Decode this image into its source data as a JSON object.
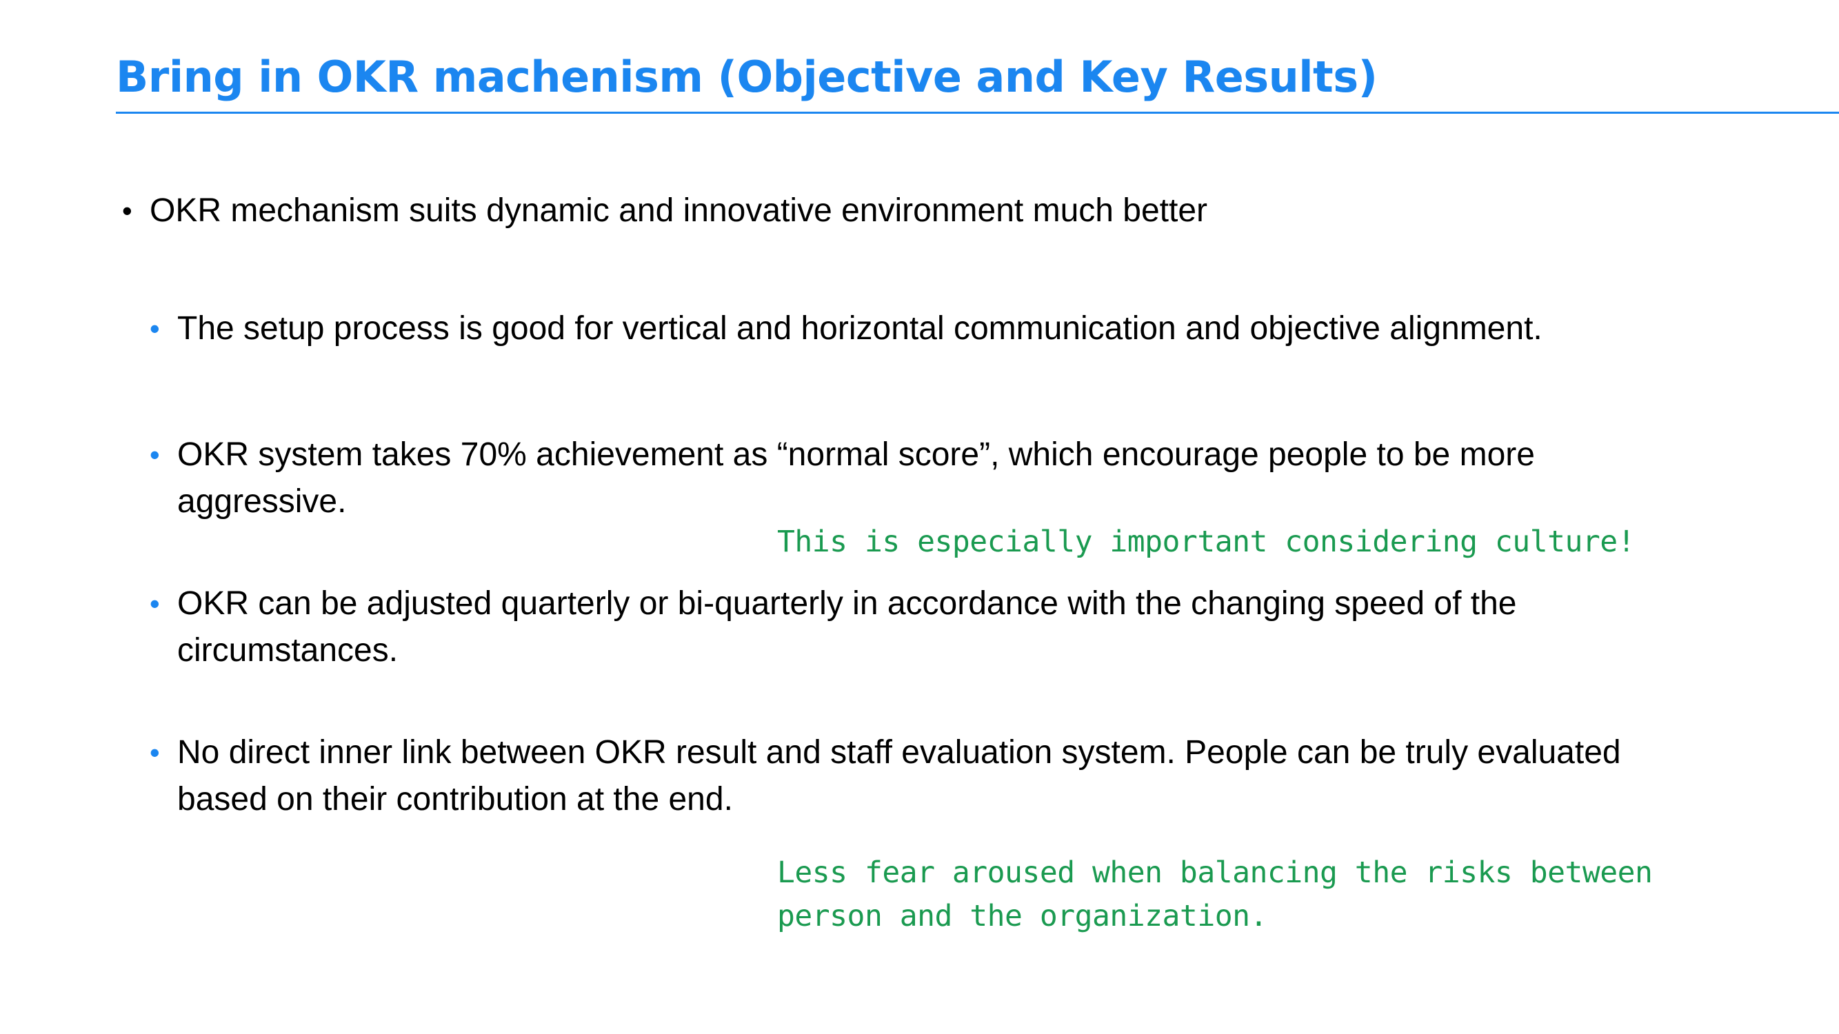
{
  "slide": {
    "title": "Bring in OKR machenism (Objective and Key Results)",
    "bullets": [
      {
        "level": 1,
        "text": "OKR mechanism suits dynamic and innovative environment much better"
      },
      {
        "level": 2,
        "text": "The setup process is good for vertical and horizontal communication and objective alignment."
      },
      {
        "level": 2,
        "text": "OKR system takes 70% achievement as “normal score”, which encourage people to be more aggressive."
      },
      {
        "level": 2,
        "text": "OKR can be adjusted quarterly or bi-quarterly in accordance with the changing speed of the circumstances."
      },
      {
        "level": 2,
        "text": "No direct inner link between OKR result and staff evaluation system. People can be truly evaluated based on their contribution at the end."
      }
    ],
    "notes": [
      {
        "lines": [
          "This is especially important considering culture!"
        ]
      },
      {
        "lines": [
          "Less fear aroused when balancing the risks between",
          "person and the organization."
        ]
      }
    ],
    "bullet_glyph": "•",
    "colors": {
      "title": "#1b86f0",
      "sub_bullet": "#1b86f0",
      "note": "#1a9a50",
      "body": "#000000"
    }
  }
}
